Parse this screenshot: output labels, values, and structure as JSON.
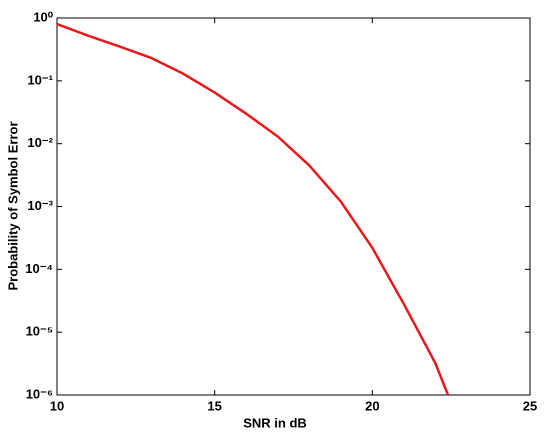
{
  "chart_data": {
    "type": "line",
    "x_label": "SNR in dB",
    "y_label": "Probability of Symbol Error",
    "log_y": true,
    "grid": false,
    "xlim": [
      10,
      25
    ],
    "xticks": [
      10,
      15,
      20,
      25
    ],
    "ylim": [
      1e-06,
      1
    ],
    "yticks": [
      {
        "value": 1e-06,
        "label": "10⁻⁶"
      },
      {
        "value": 1e-05,
        "label": "10⁻⁵"
      },
      {
        "value": 0.0001,
        "label": "10⁻⁴"
      },
      {
        "value": 0.001,
        "label": "10⁻³"
      },
      {
        "value": 0.01,
        "label": "10⁻²"
      },
      {
        "value": 0.1,
        "label": "10⁻¹"
      },
      {
        "value": 1,
        "label": "10⁰"
      }
    ],
    "x": [
      10,
      11,
      12,
      13,
      14,
      15,
      16,
      17,
      18,
      19,
      20,
      21,
      22,
      22.4
    ],
    "series": [
      {
        "color": "#e8191c",
        "values": [
          0.8,
          0.52,
          0.35,
          0.23,
          0.13,
          0.065,
          0.03,
          0.013,
          0.0045,
          0.0012,
          0.00022,
          2.8e-05,
          3.2e-06,
          1e-06
        ]
      }
    ]
  }
}
